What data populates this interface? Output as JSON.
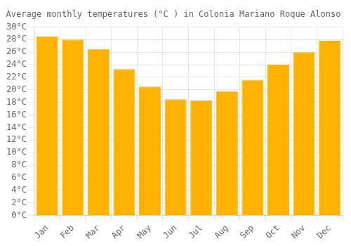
{
  "chart_data": {
    "type": "bar",
    "title": "Average monthly temperatures (°C ) in Colonia Mariano Roque Alonso",
    "categories": [
      "Jan",
      "Feb",
      "Mar",
      "Apr",
      "May",
      "Jun",
      "Jul",
      "Aug",
      "Sep",
      "Oct",
      "Nov",
      "Dec"
    ],
    "values": [
      28.5,
      28.0,
      26.5,
      23.3,
      20.5,
      18.5,
      18.3,
      19.8,
      21.6,
      24.0,
      26.0,
      27.8
    ],
    "color": "#FFB300",
    "ylim": [
      0,
      30
    ],
    "yticks": [
      {
        "value": 0,
        "label": "0°C"
      },
      {
        "value": 2,
        "label": "2°C"
      },
      {
        "value": 4,
        "label": "4°C"
      },
      {
        "value": 6,
        "label": "6°C"
      },
      {
        "value": 8,
        "label": "8°C"
      },
      {
        "value": 10,
        "label": "10°C"
      },
      {
        "value": 12,
        "label": "12°C"
      },
      {
        "value": 14,
        "label": "14°C"
      },
      {
        "value": 16,
        "label": "16°C"
      },
      {
        "value": 18,
        "label": "18°C"
      },
      {
        "value": 20,
        "label": "20°C"
      },
      {
        "value": 22,
        "label": "22°C"
      },
      {
        "value": 24,
        "label": "24°C"
      },
      {
        "value": 26,
        "label": "26°C"
      },
      {
        "value": 28,
        "label": "28°C"
      },
      {
        "value": 30,
        "label": "30°C"
      }
    ],
    "grid": true
  }
}
